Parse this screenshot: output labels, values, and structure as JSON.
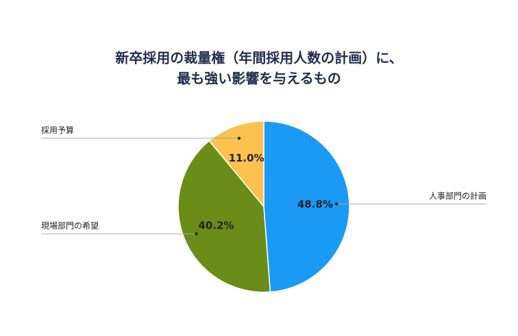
{
  "chart_data": {
    "type": "pie",
    "title": [
      "新卒採用の裁量権（年間採用人数の計画）に、",
      "最も強い影響を与えるもの"
    ],
    "categories": [
      "人事部門の計画",
      "現場部門の希望",
      "採用予算"
    ],
    "values": [
      48.8,
      40.2,
      11.0
    ],
    "value_labels": [
      "48.8%",
      "40.2%",
      "11.0%"
    ],
    "colors": [
      "#1a9af5",
      "#6a8c18",
      "#fcc24f"
    ]
  }
}
